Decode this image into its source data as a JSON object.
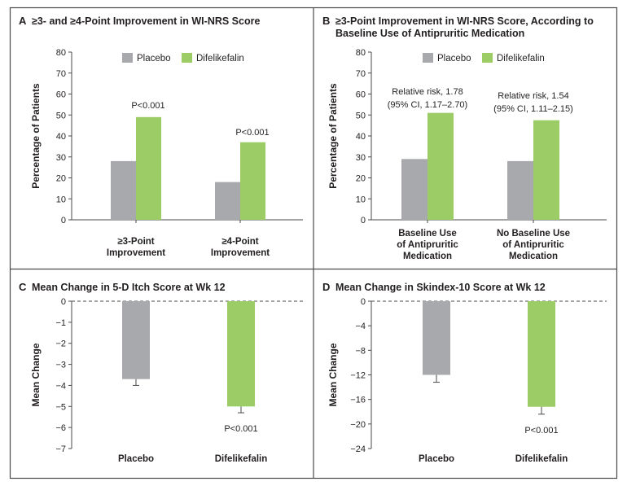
{
  "colors": {
    "placebo": "#a7a9ac",
    "difelikefalin": "#9ccc65",
    "frame": "#4a4a4a",
    "text": "#231f20"
  },
  "chart_data": [
    {
      "type": "bar",
      "letter": "A",
      "title": "≥3- and ≥4-Point Improvement in WI-NRS Score",
      "title2": "",
      "ylabel": "Percentage of Patients",
      "ylim": [
        0,
        80
      ],
      "yticks": [
        0,
        10,
        20,
        30,
        40,
        50,
        60,
        70,
        80
      ],
      "legend": "top",
      "categories": [
        [
          "≥3-Point",
          "Improvement"
        ],
        [
          "≥4-Point",
          "Improvement"
        ]
      ],
      "series": [
        {
          "name": "Placebo",
          "values": [
            28,
            18
          ]
        },
        {
          "name": "Difelikefalin",
          "values": [
            49,
            37
          ]
        }
      ],
      "annotations": [
        [
          "P<0.001"
        ],
        [
          "P<0.001"
        ]
      ]
    },
    {
      "type": "bar",
      "letter": "B",
      "title": "≥3-Point Improvement in WI-NRS Score, According to",
      "title2": "Baseline Use of Antipruritic Medication",
      "ylabel": "Percentage of Patients",
      "ylim": [
        0,
        80
      ],
      "yticks": [
        0,
        10,
        20,
        30,
        40,
        50,
        60,
        70,
        80
      ],
      "legend": "top",
      "categories": [
        [
          "Baseline Use",
          "of Antipruritic",
          "Medication"
        ],
        [
          "No Baseline Use",
          "of Antipruritic",
          "Medication"
        ]
      ],
      "series": [
        {
          "name": "Placebo",
          "values": [
            29,
            28
          ]
        },
        {
          "name": "Difelikefalin",
          "values": [
            51,
            47.5
          ]
        }
      ],
      "annotations": [
        [
          "Relative risk, 1.78",
          "(95% CI, 1.17–2.70)"
        ],
        [
          "Relative risk, 1.54",
          "(95% CI, 1.11–2.15)"
        ]
      ]
    },
    {
      "type": "bar",
      "letter": "C",
      "title": "Mean Change in 5-D Itch Score at Wk 12",
      "title2": "",
      "ylabel": "Mean Change",
      "ylim": [
        -7,
        0
      ],
      "yticks": [
        0,
        -1,
        -2,
        -3,
        -4,
        -5,
        -6,
        -7
      ],
      "ytick_labels": [
        "0",
        "−1",
        "−2",
        "−3",
        "−4",
        "−5",
        "−6",
        "−7"
      ],
      "categories": [
        [
          "Placebo"
        ],
        [
          "Difelikefalin"
        ]
      ],
      "values": [
        -3.7,
        -5.0
      ],
      "errors": [
        0.3,
        0.3
      ],
      "annotations": [
        [],
        [
          "P<0.001"
        ]
      ]
    },
    {
      "type": "bar",
      "letter": "D",
      "title": "Mean Change in Skindex-10 Score at Wk 12",
      "title2": "",
      "ylabel": "Mean Change",
      "ylim": [
        -24,
        0
      ],
      "yticks": [
        0,
        -4,
        -8,
        -12,
        -16,
        -20,
        -24
      ],
      "ytick_labels": [
        "0",
        "−4",
        "−8",
        "−12",
        "−16",
        "−20",
        "−24"
      ],
      "categories": [
        [
          "Placebo"
        ],
        [
          "Difelikefalin"
        ]
      ],
      "values": [
        -12.0,
        -17.2
      ],
      "errors": [
        1.2,
        1.2
      ],
      "annotations": [
        [],
        [
          "P<0.001"
        ]
      ]
    }
  ]
}
